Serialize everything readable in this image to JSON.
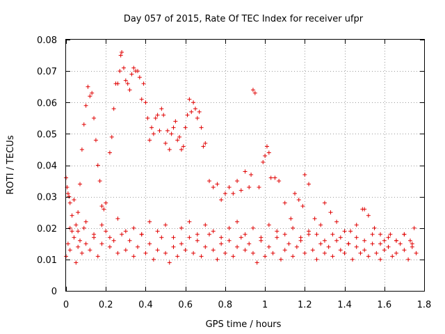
{
  "chart_data": {
    "type": "scatter",
    "title": "Day 057 of 2015, Rate Of TEC Index for receiver ufpr",
    "xlabel": "GPS time / hours",
    "ylabel": "ROTI / TECUs",
    "xlim": [
      0,
      1.8
    ],
    "ylim": [
      0,
      0.08
    ],
    "xticks": [
      0,
      0.2,
      0.4,
      0.6,
      0.8,
      1,
      1.2,
      1.4,
      1.6,
      1.8
    ],
    "xtick_labels": [
      "0",
      "0.2",
      "0.4",
      "0.6",
      "0.8",
      "1",
      "1.2",
      "1.4",
      "1.6",
      "1.8"
    ],
    "yticks": [
      0,
      0.01,
      0.02,
      0.03,
      0.04,
      0.05,
      0.06,
      0.07,
      0.08
    ],
    "ytick_labels": [
      "0",
      "0.01",
      "0.02",
      "0.03",
      "0.04",
      "0.05",
      "0.06",
      "0.07",
      "0.08"
    ],
    "grid": true,
    "marker": "+",
    "marker_color": "#e00000",
    "series": [
      {
        "name": "ROTI",
        "x": [
          0.0,
          0.005,
          0.01,
          0.015,
          0.02,
          0.03,
          0.04,
          0.05,
          0.06,
          0.07,
          0.08,
          0.09,
          0.1,
          0.11,
          0.12,
          0.13,
          0.14,
          0.15,
          0.16,
          0.17,
          0.18,
          0.19,
          0.2,
          0.22,
          0.23,
          0.24,
          0.25,
          0.26,
          0.27,
          0.275,
          0.28,
          0.29,
          0.3,
          0.31,
          0.32,
          0.33,
          0.34,
          0.35,
          0.36,
          0.37,
          0.38,
          0.39,
          0.4,
          0.41,
          0.42,
          0.43,
          0.44,
          0.45,
          0.46,
          0.47,
          0.48,
          0.49,
          0.5,
          0.51,
          0.52,
          0.53,
          0.54,
          0.55,
          0.56,
          0.57,
          0.58,
          0.59,
          0.6,
          0.61,
          0.62,
          0.63,
          0.64,
          0.65,
          0.66,
          0.67,
          0.68,
          0.69,
          0.7,
          0.72,
          0.74,
          0.76,
          0.78,
          0.8,
          0.82,
          0.84,
          0.86,
          0.88,
          0.9,
          0.92,
          0.93,
          0.94,
          0.95,
          0.97,
          0.99,
          1.0,
          1.01,
          1.02,
          1.03,
          1.05,
          1.07,
          1.1,
          1.13,
          1.15,
          1.17,
          1.19,
          1.2,
          1.22,
          1.25,
          1.28,
          1.3,
          1.33,
          1.36,
          1.4,
          1.43,
          1.46,
          1.49,
          1.5,
          1.52,
          1.55,
          1.58,
          1.6,
          1.63,
          1.66,
          1.7,
          1.73,
          1.75,
          0.0,
          0.01,
          0.02,
          0.03,
          0.04,
          0.05,
          0.06,
          0.07,
          0.08,
          0.09,
          0.1,
          0.12,
          0.14,
          0.16,
          0.18,
          0.2,
          0.22,
          0.24,
          0.26,
          0.28,
          0.3,
          0.32,
          0.34,
          0.36,
          0.38,
          0.4,
          0.42,
          0.44,
          0.46,
          0.48,
          0.5,
          0.52,
          0.54,
          0.56,
          0.58,
          0.6,
          0.62,
          0.64,
          0.66,
          0.68,
          0.7,
          0.72,
          0.74,
          0.76,
          0.78,
          0.8,
          0.82,
          0.84,
          0.86,
          0.88,
          0.9,
          0.92,
          0.94,
          0.96,
          0.98,
          1.0,
          1.02,
          1.04,
          1.06,
          1.08,
          1.1,
          1.12,
          1.14,
          1.16,
          1.18,
          1.2,
          1.22,
          1.24,
          1.26,
          1.28,
          1.3,
          1.32,
          1.34,
          1.36,
          1.38,
          1.4,
          1.42,
          1.44,
          1.46,
          1.48,
          1.5,
          1.52,
          1.54,
          1.56,
          1.58,
          1.6,
          1.62,
          1.64,
          1.66,
          1.68,
          1.7,
          1.72,
          1.74,
          1.76,
          0.02,
          0.06,
          0.1,
          0.14,
          0.18,
          0.22,
          0.26,
          0.3,
          0.34,
          0.38,
          0.42,
          0.46,
          0.5,
          0.54,
          0.58,
          0.62,
          0.66,
          0.7,
          0.74,
          0.78,
          0.82,
          0.86,
          0.9,
          0.94,
          0.98,
          1.02,
          1.06,
          1.1,
          1.14,
          1.18,
          1.22,
          1.26,
          1.3,
          1.34,
          1.38,
          1.42,
          1.46,
          1.5,
          1.54,
          1.58,
          1.62,
          1.66,
          1.7,
          1.74
        ],
        "y": [
          0.036,
          0.033,
          0.031,
          0.03,
          0.028,
          0.024,
          0.029,
          0.021,
          0.025,
          0.034,
          0.045,
          0.053,
          0.059,
          0.065,
          0.062,
          0.063,
          0.055,
          0.048,
          0.04,
          0.035,
          0.027,
          0.026,
          0.028,
          0.044,
          0.049,
          0.058,
          0.066,
          0.066,
          0.07,
          0.075,
          0.076,
          0.071,
          0.067,
          0.066,
          0.064,
          0.069,
          0.071,
          0.07,
          0.07,
          0.068,
          0.061,
          0.066,
          0.06,
          0.055,
          0.048,
          0.052,
          0.05,
          0.055,
          0.056,
          0.051,
          0.058,
          0.056,
          0.047,
          0.051,
          0.045,
          0.05,
          0.052,
          0.054,
          0.048,
          0.049,
          0.045,
          0.046,
          0.052,
          0.056,
          0.061,
          0.057,
          0.06,
          0.058,
          0.055,
          0.057,
          0.052,
          0.046,
          0.047,
          0.035,
          0.033,
          0.034,
          0.029,
          0.031,
          0.033,
          0.031,
          0.035,
          0.032,
          0.038,
          0.033,
          0.037,
          0.064,
          0.063,
          0.033,
          0.041,
          0.043,
          0.046,
          0.044,
          0.036,
          0.036,
          0.035,
          0.028,
          0.023,
          0.031,
          0.029,
          0.027,
          0.037,
          0.034,
          0.023,
          0.021,
          0.028,
          0.025,
          0.022,
          0.019,
          0.019,
          0.021,
          0.026,
          0.026,
          0.024,
          0.02,
          0.018,
          0.016,
          0.018,
          0.016,
          0.018,
          0.016,
          0.02,
          0.011,
          0.015,
          0.013,
          0.019,
          0.017,
          0.009,
          0.014,
          0.016,
          0.012,
          0.02,
          0.015,
          0.013,
          0.017,
          0.011,
          0.015,
          0.019,
          0.014,
          0.016,
          0.012,
          0.018,
          0.013,
          0.016,
          0.011,
          0.014,
          0.018,
          0.012,
          0.015,
          0.01,
          0.013,
          0.017,
          0.012,
          0.009,
          0.014,
          0.011,
          0.015,
          0.013,
          0.017,
          0.012,
          0.016,
          0.011,
          0.014,
          0.018,
          0.013,
          0.01,
          0.015,
          0.012,
          0.016,
          0.011,
          0.014,
          0.017,
          0.013,
          0.015,
          0.012,
          0.009,
          0.016,
          0.011,
          0.014,
          0.012,
          0.017,
          0.01,
          0.013,
          0.015,
          0.011,
          0.014,
          0.016,
          0.012,
          0.018,
          0.013,
          0.01,
          0.015,
          0.012,
          0.014,
          0.011,
          0.016,
          0.013,
          0.012,
          0.015,
          0.01,
          0.014,
          0.012,
          0.013,
          0.011,
          0.015,
          0.012,
          0.01,
          0.013,
          0.014,
          0.011,
          0.012,
          0.015,
          0.013,
          0.01,
          0.014,
          0.012,
          0.02,
          0.019,
          0.022,
          0.018,
          0.021,
          0.017,
          0.023,
          0.019,
          0.02,
          0.018,
          0.022,
          0.019,
          0.021,
          0.017,
          0.02,
          0.022,
          0.018,
          0.021,
          0.019,
          0.017,
          0.02,
          0.022,
          0.018,
          0.02,
          0.017,
          0.021,
          0.019,
          0.018,
          0.02,
          0.017,
          0.019,
          0.018,
          0.016,
          0.018,
          0.017,
          0.015,
          0.017,
          0.016,
          0.018,
          0.015,
          0.017,
          0.016,
          0.018,
          0.015
        ]
      }
    ]
  }
}
